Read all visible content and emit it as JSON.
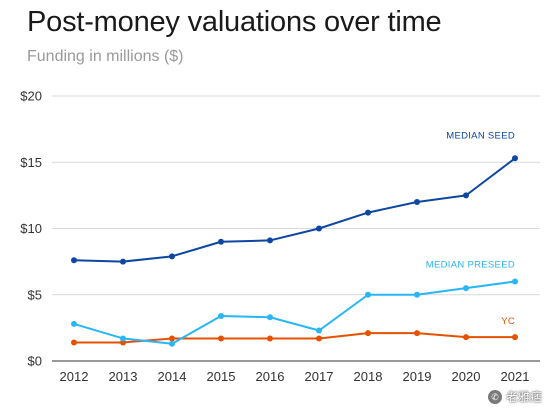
{
  "header": {
    "title": "Post-money valuations over time",
    "subtitle": "Funding in millions ($)"
  },
  "watermark": {
    "text": "老雅痞",
    "icon": "wechat-icon"
  },
  "colors": {
    "median_seed": "#0d47a1",
    "median_preseed": "#29b6f6",
    "yc": "#e65100",
    "grid": "#d9d9d9",
    "axis": "#333333"
  },
  "chart_data": {
    "type": "line",
    "title": "Post-money valuations over time",
    "subtitle": "Funding in millions ($)",
    "xlabel": "",
    "ylabel": "",
    "x": [
      "2012",
      "2013",
      "2014",
      "2015",
      "2016",
      "2017",
      "2018",
      "2019",
      "2020",
      "2021"
    ],
    "ylim": [
      0,
      20
    ],
    "yticks": [
      0,
      5,
      10,
      15,
      20
    ],
    "ytick_labels": [
      "$0",
      "$5",
      "$10",
      "$15",
      "$20"
    ],
    "grid": true,
    "series": [
      {
        "name": "MEDIAN SEED",
        "color": "#0d47a1",
        "values": [
          7.6,
          7.5,
          7.9,
          9.0,
          9.1,
          10.0,
          11.2,
          12.0,
          12.5,
          15.3
        ]
      },
      {
        "name": "MEDIAN PRESEED",
        "color": "#29b6f6",
        "values": [
          2.8,
          1.7,
          1.3,
          3.4,
          3.3,
          2.3,
          5.0,
          5.0,
          5.5,
          6.0
        ]
      },
      {
        "name": "YC",
        "color": "#e65100",
        "values": [
          1.4,
          1.4,
          1.7,
          1.7,
          1.7,
          1.7,
          2.1,
          2.1,
          1.8,
          1.8
        ]
      }
    ]
  }
}
